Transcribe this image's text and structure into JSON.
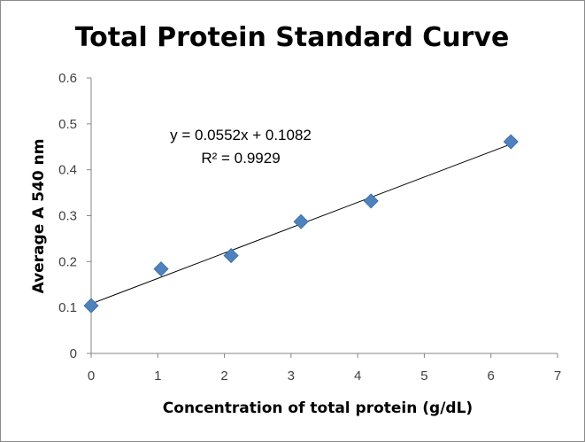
{
  "chart_data": {
    "type": "scatter",
    "title": "Total Protein Standard Curve",
    "xlabel": "Concentration of total protein (g/dL)",
    "ylabel": "Average A 540 nm",
    "xlim": [
      0,
      7
    ],
    "ylim": [
      0,
      0.6
    ],
    "x_ticks": [
      "0",
      "1",
      "2",
      "3",
      "4",
      "5",
      "6",
      "7"
    ],
    "y_ticks": [
      "0",
      "0.1",
      "0.2",
      "0.3",
      "0.4",
      "0.5",
      "0.6"
    ],
    "grid": false,
    "legend": "none",
    "marker": "diamond",
    "marker_color": "#4f81bd",
    "trendline_color": "#000000",
    "series": [
      {
        "x": [
          0,
          1.05,
          2.1,
          3.15,
          4.2,
          6.3
        ],
        "y": [
          0.104,
          0.184,
          0.213,
          0.287,
          0.332,
          0.461
        ]
      }
    ],
    "trendline": {
      "type": "linear",
      "slope": 0.0552,
      "intercept": 0.1082,
      "x_range": [
        0,
        6.3
      ],
      "equation_label": "y = 0.0552x + 0.1082",
      "r2_label": "R² = 0.9929"
    }
  }
}
